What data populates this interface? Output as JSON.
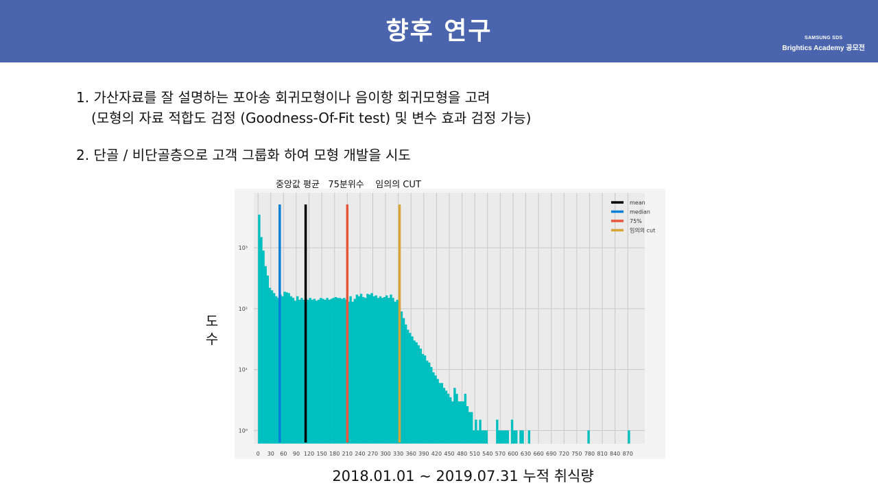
{
  "header": {
    "title": "향후 연구",
    "brand_line1": "SAMSUNG SDS",
    "brand_line2": "Brightics Academy 공모전"
  },
  "bullets": {
    "item1": "1.  가산자료를 잘 설명하는 포아송 회귀모형이나 음이항 회귀모형을 고려",
    "item1_sub": "(모형의 자료 적합도 검정 (Goodness-Of-Fit test) 및 변수 효과 검정 가능)",
    "item2": "2. 단골 / 비단골층으로 고객 그룹화 하여 모형 개발을 시도"
  },
  "chart_caption": "중앙값 평균   75분위수    임의의 CUT",
  "colors": {
    "header_bg": "#4a65ae",
    "bars": "#00bfbf",
    "mean": "#000000",
    "median": "#0a7fd6",
    "p75": "#e8553a",
    "cut": "#d9a437",
    "plot_bg": "#ebebeb"
  },
  "chart_data": {
    "type": "bar",
    "title": "",
    "xlabel": "2018.01.01 ~ 2019.07.31 누적 취식량",
    "ylabel": "도수",
    "yscale": "log",
    "ylim": [
      0.6,
      8000
    ],
    "xlim": [
      -10,
      910
    ],
    "grid": true,
    "legend_position": "top-right",
    "x_ticks": [
      0,
      30,
      60,
      90,
      120,
      150,
      180,
      210,
      240,
      270,
      300,
      330,
      360,
      390,
      420,
      450,
      480,
      510,
      540,
      570,
      600,
      630,
      660,
      690,
      720,
      750,
      780,
      810,
      840,
      870
    ],
    "y_ticks": [
      {
        "value": 1,
        "label": "10⁰"
      },
      {
        "value": 10,
        "label": "10¹"
      },
      {
        "value": 100,
        "label": "10²"
      },
      {
        "value": 1000,
        "label": "10³"
      }
    ],
    "bin_width": 5,
    "bins": [
      [
        0,
        3500
      ],
      [
        5,
        1500
      ],
      [
        10,
        900
      ],
      [
        15,
        500
      ],
      [
        20,
        350
      ],
      [
        25,
        220
      ],
      [
        30,
        200
      ],
      [
        35,
        180
      ],
      [
        40,
        160
      ],
      [
        45,
        150
      ],
      [
        50,
        170
      ],
      [
        55,
        160
      ],
      [
        60,
        190
      ],
      [
        65,
        185
      ],
      [
        70,
        180
      ],
      [
        75,
        160
      ],
      [
        80,
        150
      ],
      [
        85,
        135
      ],
      [
        90,
        160
      ],
      [
        95,
        140
      ],
      [
        100,
        150
      ],
      [
        105,
        140
      ],
      [
        110,
        145
      ],
      [
        115,
        140
      ],
      [
        120,
        150
      ],
      [
        125,
        140
      ],
      [
        130,
        145
      ],
      [
        135,
        135
      ],
      [
        140,
        140
      ],
      [
        145,
        150
      ],
      [
        150,
        145
      ],
      [
        155,
        140
      ],
      [
        160,
        150
      ],
      [
        165,
        140
      ],
      [
        170,
        145
      ],
      [
        175,
        150
      ],
      [
        180,
        155
      ],
      [
        185,
        150
      ],
      [
        190,
        150
      ],
      [
        195,
        145
      ],
      [
        200,
        150
      ],
      [
        205,
        140
      ],
      [
        210,
        130
      ],
      [
        215,
        160
      ],
      [
        220,
        130
      ],
      [
        225,
        145
      ],
      [
        230,
        170
      ],
      [
        235,
        160
      ],
      [
        240,
        175
      ],
      [
        245,
        155
      ],
      [
        250,
        150
      ],
      [
        255,
        175
      ],
      [
        260,
        170
      ],
      [
        265,
        180
      ],
      [
        270,
        160
      ],
      [
        275,
        165
      ],
      [
        280,
        150
      ],
      [
        285,
        160
      ],
      [
        290,
        150
      ],
      [
        295,
        155
      ],
      [
        300,
        165
      ],
      [
        305,
        150
      ],
      [
        310,
        170
      ],
      [
        315,
        150
      ],
      [
        320,
        130
      ],
      [
        325,
        140
      ],
      [
        330,
        110
      ],
      [
        335,
        90
      ],
      [
        340,
        70
      ],
      [
        345,
        55
      ],
      [
        350,
        45
      ],
      [
        355,
        40
      ],
      [
        360,
        35
      ],
      [
        365,
        30
      ],
      [
        370,
        28
      ],
      [
        375,
        25
      ],
      [
        380,
        22
      ],
      [
        385,
        18
      ],
      [
        390,
        17
      ],
      [
        395,
        14
      ],
      [
        400,
        13
      ],
      [
        405,
        11
      ],
      [
        410,
        9
      ],
      [
        415,
        8
      ],
      [
        420,
        7
      ],
      [
        425,
        6
      ],
      [
        430,
        6
      ],
      [
        435,
        5
      ],
      [
        440,
        4.5
      ],
      [
        445,
        4
      ],
      [
        450,
        3.5
      ],
      [
        455,
        3
      ],
      [
        460,
        5
      ],
      [
        465,
        4
      ],
      [
        470,
        3
      ],
      [
        475,
        3
      ],
      [
        480,
        3
      ],
      [
        485,
        4
      ],
      [
        490,
        2.5
      ],
      [
        495,
        2
      ],
      [
        500,
        2
      ],
      [
        505,
        1
      ],
      [
        510,
        1.5
      ],
      [
        515,
        1
      ],
      [
        520,
        1.5
      ],
      [
        525,
        1
      ],
      [
        530,
        1
      ],
      [
        535,
        1
      ],
      [
        560,
        1.5
      ],
      [
        565,
        1
      ],
      [
        570,
        1
      ],
      [
        575,
        1
      ],
      [
        580,
        1
      ],
      [
        585,
        1
      ],
      [
        595,
        1.5
      ],
      [
        600,
        1
      ],
      [
        605,
        1
      ],
      [
        615,
        1
      ],
      [
        620,
        1
      ],
      [
        635,
        1
      ],
      [
        775,
        1
      ],
      [
        870,
        1
      ]
    ],
    "reference_lines": [
      {
        "name": "mean",
        "x": 112,
        "color": "#000000"
      },
      {
        "name": "median",
        "x": 51,
        "color": "#0a7fd6"
      },
      {
        "name": "75%",
        "x": 210,
        "color": "#e8553a"
      },
      {
        "name": "임의의 cut",
        "x": 333,
        "color": "#d9a437"
      }
    ],
    "legend": [
      "mean",
      "median",
      "75%",
      "임의의 cut"
    ]
  }
}
